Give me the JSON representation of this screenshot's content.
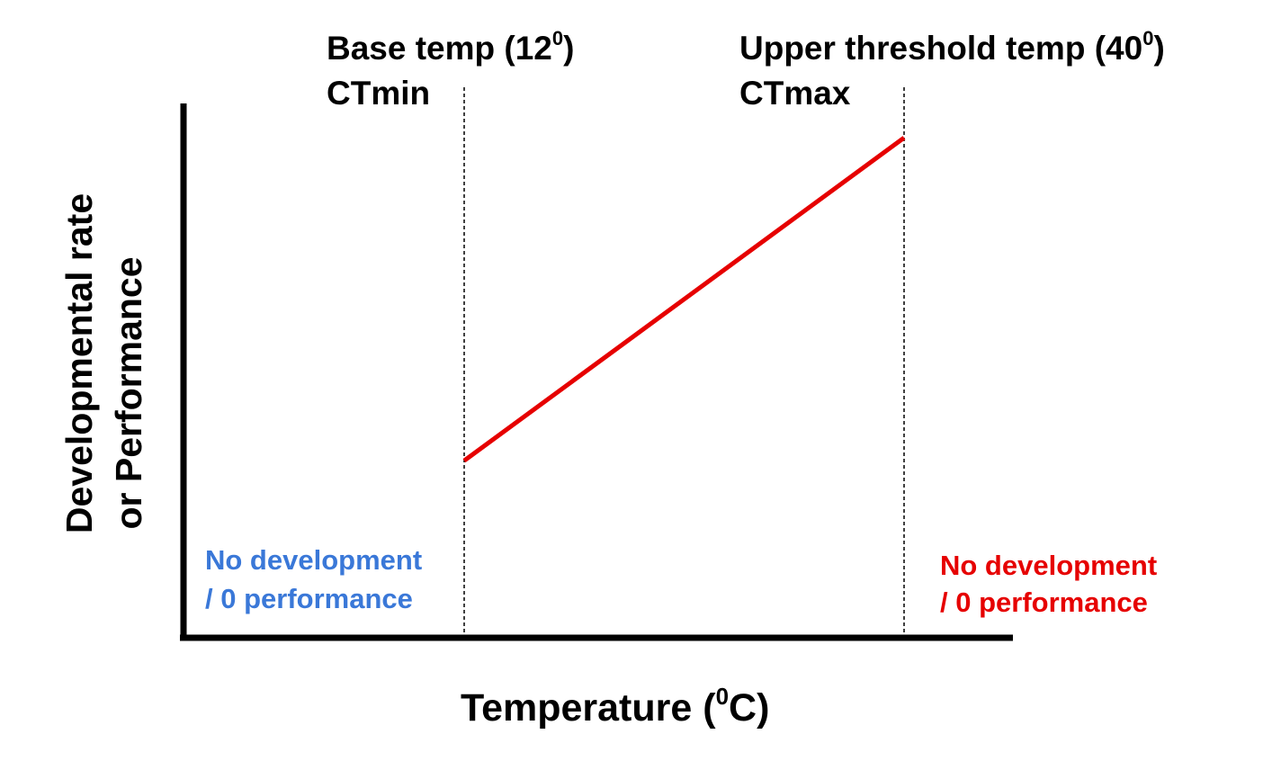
{
  "chart_data": {
    "type": "line",
    "xlabel": "Temperature (",
    "xlabel_sup": "0",
    "xlabel_tail": "C)",
    "ylabel_line1": "Developmental rate",
    "ylabel_line2": "or Performance",
    "markers": {
      "base": {
        "line1": "Base temp (12",
        "line1_sup": "0",
        "line1_tail": ")",
        "line2": "CTmin",
        "value": 12
      },
      "upper": {
        "line1": "Upper threshold temp (40",
        "line1_sup": "0",
        "line1_tail": ")",
        "line2": "CTmax",
        "value": 40
      }
    },
    "series": [
      {
        "x": [
          12,
          40
        ],
        "y": [
          0.34,
          0.96
        ],
        "color": "#e60000"
      }
    ],
    "regions": {
      "left": {
        "line1": "No development",
        "line2": "/ 0 performance",
        "color": "#3a78d8"
      },
      "right": {
        "line1": "No development",
        "line2": "/ 0 performance",
        "color": "#e60000"
      }
    },
    "grid": false
  }
}
